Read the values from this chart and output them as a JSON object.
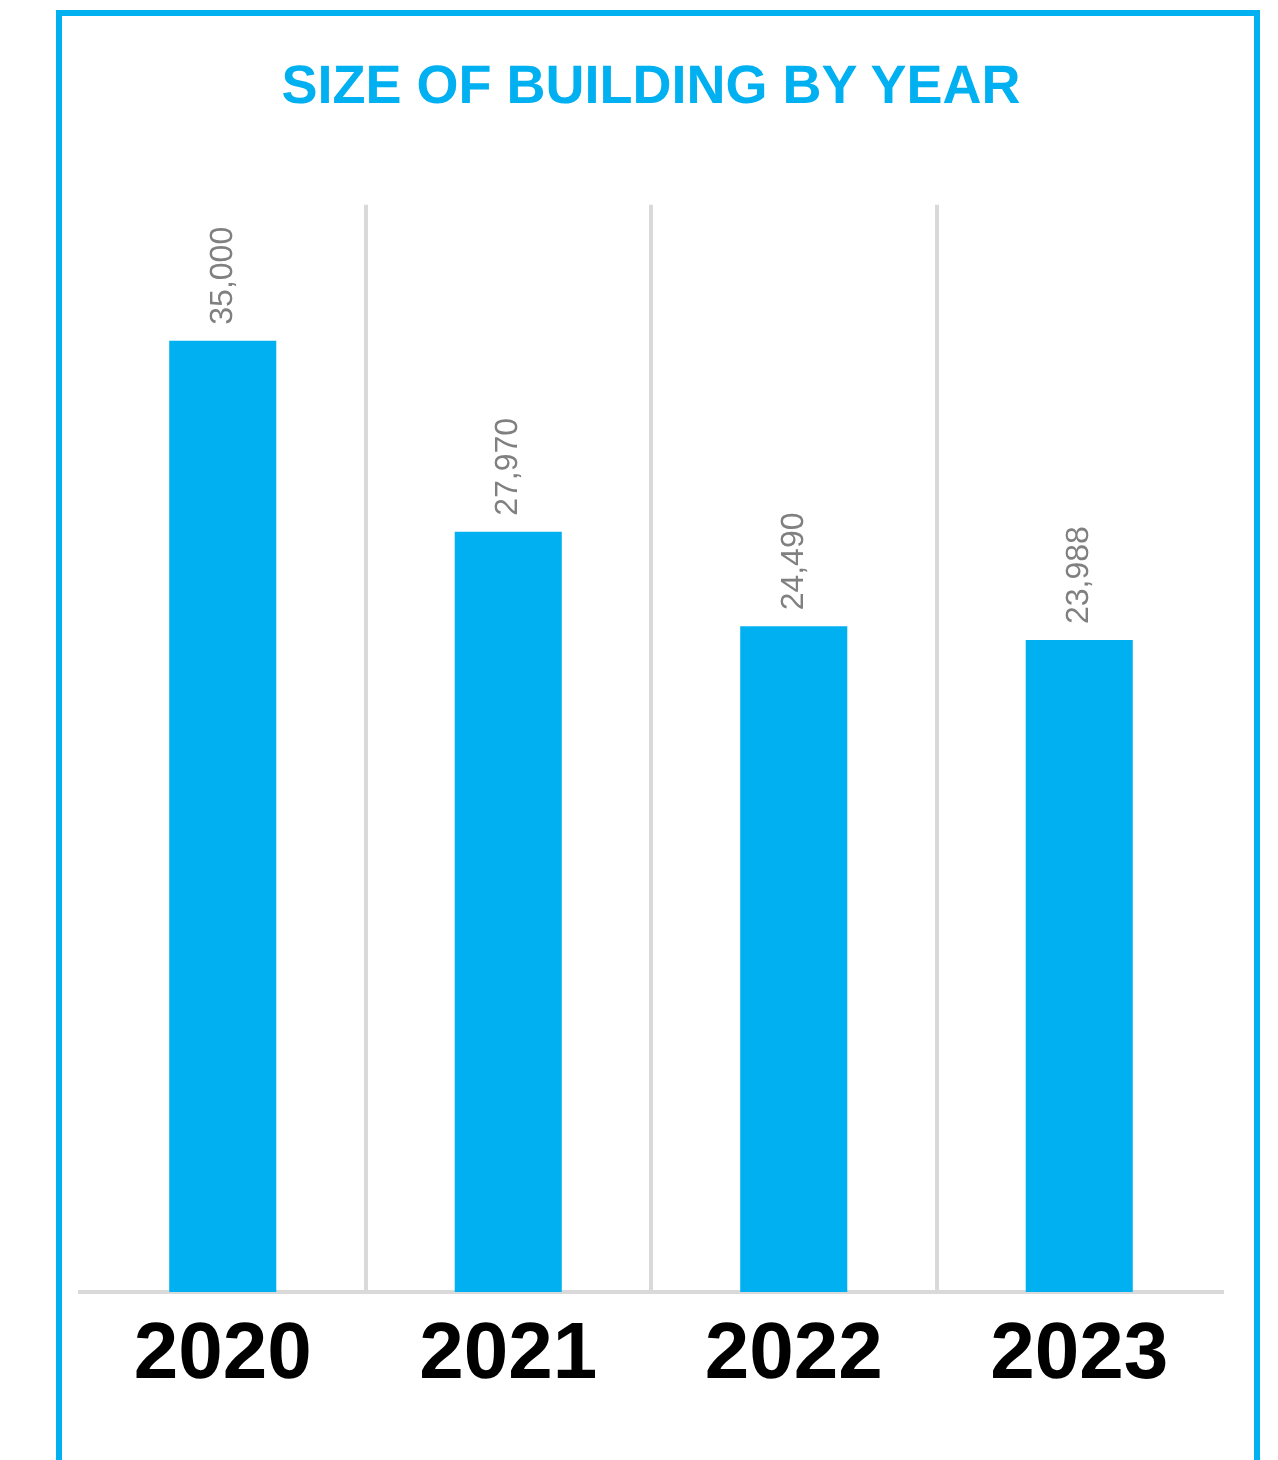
{
  "chart_data": {
    "type": "bar",
    "title": "SIZE OF BUILDING BY YEAR",
    "categories": [
      "2020",
      "2021",
      "2022",
      "2023"
    ],
    "values": [
      35000,
      27970,
      24490,
      23988
    ],
    "value_labels": [
      "35,000",
      "27,970",
      "24,490",
      "23,988"
    ],
    "color": "#00b0f0",
    "grid": "x",
    "legend": false
  }
}
